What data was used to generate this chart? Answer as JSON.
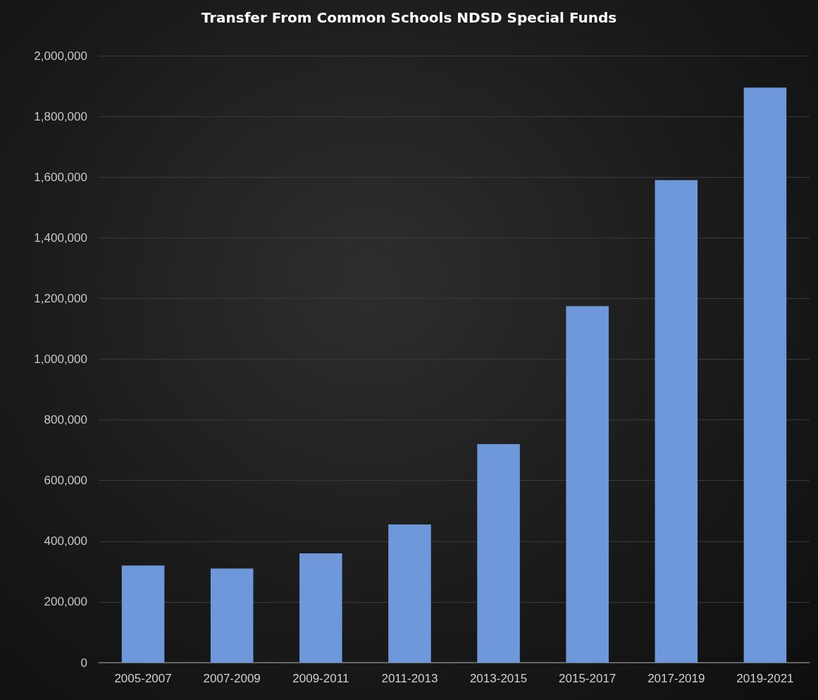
{
  "chart_data": {
    "type": "bar",
    "title": "Transfer From Common Schools NDSD Special Funds",
    "categories": [
      "2005-2007",
      "2007-2009",
      "2009-2011",
      "2011-2013",
      "2013-2015",
      "2015-2017",
      "2017-2019",
      "2019-2021"
    ],
    "values": [
      320000,
      310000,
      360000,
      455000,
      720000,
      1175000,
      1590000,
      1895000
    ],
    "color": "#6f98da",
    "ylim": [
      0,
      2000000
    ],
    "yticks": [
      0,
      {
        "value": 200000,
        "label": "200,000"
      },
      {
        "value": 400000,
        "label": "400,000"
      },
      {
        "value": 600000,
        "label": "600,000"
      },
      {
        "value": 800000,
        "label": "800,000"
      },
      {
        "value": 1000000,
        "label": "1,000,000"
      },
      {
        "value": 1200000,
        "label": "1,200,000"
      },
      {
        "value": 1400000,
        "label": "1,400,000"
      },
      {
        "value": 1600000,
        "label": "1,600,000"
      },
      {
        "value": 1800000,
        "label": "1,800,000"
      },
      {
        "value": 2000000,
        "label": "2,000,000"
      }
    ],
    "grid": "y"
  }
}
